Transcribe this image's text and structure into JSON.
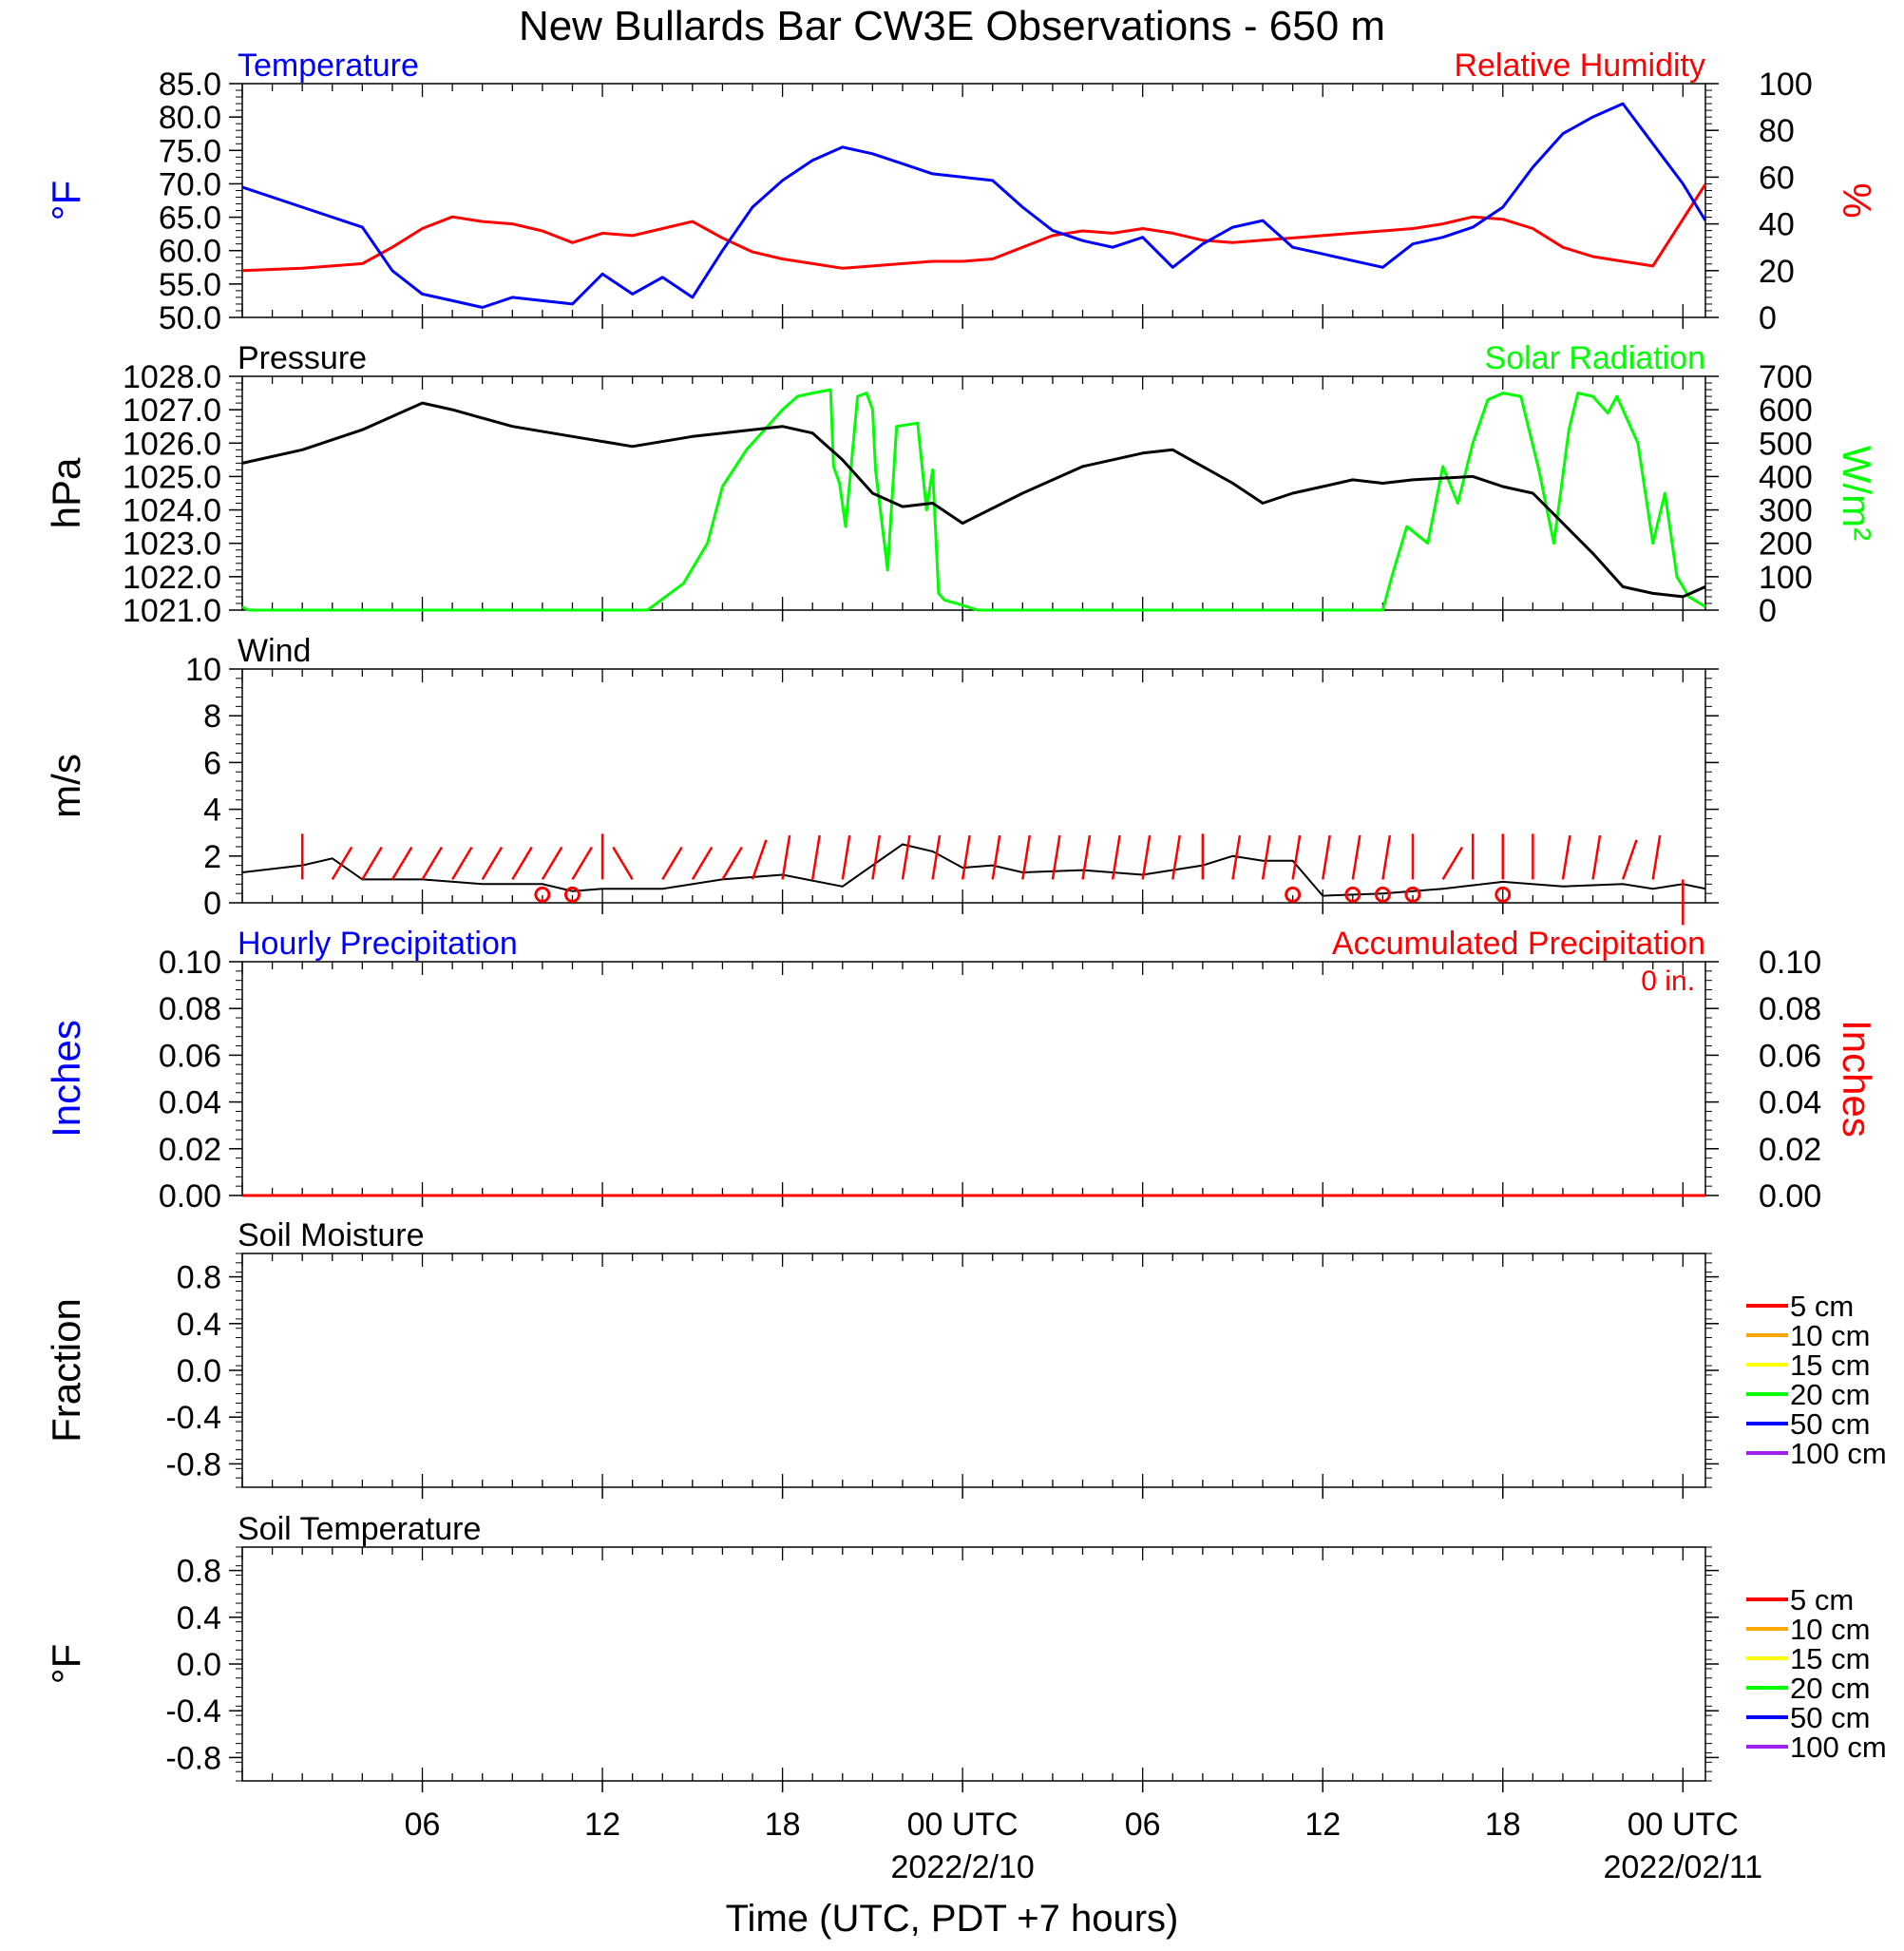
{
  "title": "New Bullards Bar CW3E Observations - 650 m",
  "x_axis": {
    "label": "Time (UTC, PDT +7 hours)",
    "range_hours": [
      -24,
      24.75
    ],
    "ticks": [
      {
        "t": -18,
        "label": "06"
      },
      {
        "t": -12,
        "label": "12"
      },
      {
        "t": -6,
        "label": "18"
      },
      {
        "t": 0,
        "label": "00 UTC",
        "date": "2022/2/10"
      },
      {
        "t": 6,
        "label": "06"
      },
      {
        "t": 12,
        "label": "12"
      },
      {
        "t": 18,
        "label": "18"
      },
      {
        "t": 24,
        "label": "00 UTC",
        "date": "2022/02/11"
      }
    ]
  },
  "chart_data": [
    {
      "type": "line",
      "panel": "temperature-humidity",
      "left_title": "Temperature",
      "right_title": "Relative Humidity",
      "ylabel_left": "°F",
      "ylabel_right": "%",
      "ylim_left": [
        50,
        85
      ],
      "ylim_right": [
        0,
        100
      ],
      "yticks_left": [
        "85.0",
        "80.0",
        "75.0",
        "70.0",
        "65.0",
        "60.0",
        "55.0",
        "50.0"
      ],
      "yticks_right": [
        "100",
        "80",
        "60",
        "40",
        "20",
        "0"
      ],
      "colors": {
        "temperature": "#0000ff",
        "humidity": "#ff0000"
      },
      "series": [
        {
          "name": "Temperature",
          "axis": "left",
          "x": [
            -24,
            -22,
            -20,
            -19,
            -18,
            -17,
            -16,
            -15,
            -14,
            -13,
            -12,
            -11,
            -10,
            -9,
            -8,
            -7,
            -6,
            -5,
            -4,
            -3,
            -2,
            -1,
            0,
            1,
            2,
            3,
            4,
            5,
            6,
            7,
            8,
            9,
            10,
            11,
            12,
            13,
            14,
            15,
            16,
            17,
            18,
            19,
            20,
            21,
            22,
            23,
            24,
            24.75
          ],
          "y": [
            69.5,
            66.5,
            63.5,
            57,
            53.5,
            52.5,
            51.5,
            53,
            52.5,
            52,
            56.5,
            53.5,
            56,
            53,
            60,
            66.5,
            70.5,
            73.5,
            75.5,
            74.5,
            73,
            71.5,
            71,
            70.5,
            66.5,
            63,
            61.5,
            60.5,
            62,
            57.5,
            61,
            63.5,
            64.5,
            60.5,
            59.5,
            58.5,
            57.5,
            61,
            62,
            63.5,
            66.5,
            72.5,
            77.5,
            80,
            82,
            76,
            70,
            64.5
          ]
        },
        {
          "name": "Relative Humidity",
          "axis": "right",
          "x": [
            -24,
            -22,
            -20,
            -19,
            -18,
            -17,
            -16,
            -15,
            -14,
            -13,
            -12,
            -11,
            -10,
            -9,
            -8,
            -7,
            -6,
            -5,
            -4,
            -3,
            -2,
            -1,
            0,
            1,
            2,
            3,
            4,
            5,
            6,
            7,
            8,
            9,
            10,
            11,
            12,
            13,
            14,
            15,
            16,
            17,
            18,
            19,
            20,
            21,
            22,
            23,
            24,
            24.75
          ],
          "y": [
            20,
            21,
            23,
            30,
            38,
            43,
            41,
            40,
            37,
            32,
            36,
            35,
            38,
            41,
            34,
            28,
            25,
            23,
            21,
            22,
            23,
            24,
            24,
            25,
            30,
            35,
            37,
            36,
            38,
            36,
            33,
            32,
            33,
            34,
            35,
            36,
            37,
            38,
            40,
            43,
            42,
            38,
            30,
            26,
            24,
            22,
            42,
            57
          ]
        }
      ]
    },
    {
      "type": "line",
      "panel": "pressure-solar",
      "left_title": "Pressure",
      "right_title": "Solar Radiation",
      "ylabel_left": "hPa",
      "ylabel_right": "W/m²",
      "ylim_left": [
        1021,
        1028
      ],
      "ylim_right": [
        0,
        700
      ],
      "yticks_left": [
        "1028.0",
        "1027.0",
        "1026.0",
        "1025.0",
        "1024.0",
        "1023.0",
        "1022.0",
        "1021.0"
      ],
      "yticks_right": [
        "700",
        "600",
        "500",
        "400",
        "300",
        "200",
        "100",
        "0"
      ],
      "colors": {
        "pressure": "#000000",
        "solar": "#00ff00"
      },
      "series": [
        {
          "name": "Pressure",
          "axis": "left",
          "x": [
            -24,
            -22,
            -20,
            -18,
            -17,
            -15,
            -13,
            -11,
            -9,
            -7,
            -6,
            -5,
            -4,
            -3,
            -2,
            -1,
            0,
            2,
            4,
            6,
            7,
            8,
            9,
            10,
            11,
            12,
            13,
            14,
            15,
            17,
            18,
            19,
            20,
            21,
            22,
            23,
            24,
            24.75
          ],
          "y": [
            1025.4,
            1025.8,
            1026.4,
            1027.2,
            1027.0,
            1026.5,
            1026.2,
            1025.9,
            1026.2,
            1026.4,
            1026.5,
            1026.3,
            1025.5,
            1024.5,
            1024.1,
            1024.2,
            1023.6,
            1024.5,
            1025.3,
            1025.7,
            1025.8,
            1025.3,
            1024.8,
            1024.2,
            1024.5,
            1024.7,
            1024.9,
            1024.8,
            1024.9,
            1025.0,
            1024.7,
            1024.5,
            1023.6,
            1022.7,
            1021.7,
            1021.5,
            1021.4,
            1021.7
          ]
        },
        {
          "name": "Solar Radiation",
          "axis": "right",
          "x": [
            -24,
            -23.8,
            -10.5,
            -9.3,
            -8.5,
            -8,
            -7.2,
            -6.5,
            -6,
            -5.5,
            -5,
            -4.4,
            -4.3,
            -4.1,
            -3.9,
            -3.5,
            -3.2,
            -3,
            -2.9,
            -2.5,
            -2.2,
            -1.5,
            -1.2,
            -1.0,
            -0.8,
            -0.6,
            -0.2,
            0.5,
            1.3,
            14,
            14.3,
            14.8,
            15.5,
            16.0,
            16.5,
            17.0,
            17.5,
            18,
            18.6,
            19.2,
            19.7,
            20.2,
            20.5,
            21,
            21.5,
            21.8,
            22.5,
            23,
            23.4,
            23.8,
            24.2,
            24.75
          ],
          "y": [
            10,
            0,
            0,
            80,
            200,
            370,
            480,
            550,
            600,
            640,
            650,
            660,
            430,
            380,
            250,
            640,
            650,
            600,
            420,
            120,
            550,
            560,
            300,
            420,
            50,
            30,
            20,
            0,
            0,
            0,
            100,
            250,
            200,
            430,
            320,
            500,
            630,
            650,
            640,
            420,
            200,
            540,
            650,
            640,
            590,
            640,
            500,
            200,
            350,
            100,
            40,
            10
          ]
        }
      ]
    },
    {
      "type": "line",
      "panel": "wind",
      "title": "Wind",
      "ylabel": "m/s",
      "ylim": [
        0,
        10
      ],
      "yticks": [
        "10",
        "8",
        "6",
        "4",
        "2",
        "0"
      ],
      "colors": {
        "speed": "#000000",
        "barbs": "#ff0000"
      },
      "series": [
        {
          "name": "Wind Speed",
          "x": [
            -24,
            -22,
            -21,
            -20,
            -18,
            -16,
            -14,
            -13,
            -12,
            -10,
            -8,
            -6,
            -4,
            -3,
            -2,
            -1,
            0,
            1,
            2,
            4,
            6,
            8,
            9,
            10,
            11,
            12,
            14,
            16,
            18,
            20,
            22,
            23,
            24,
            24.75
          ],
          "y": [
            1.3,
            1.6,
            1.9,
            1.0,
            1.0,
            0.8,
            0.8,
            0.5,
            0.6,
            0.6,
            1.0,
            1.2,
            0.7,
            1.6,
            2.5,
            2.2,
            1.5,
            1.6,
            1.3,
            1.4,
            1.2,
            1.6,
            2.0,
            1.8,
            1.8,
            0.3,
            0.4,
            0.6,
            0.9,
            0.7,
            0.8,
            0.6,
            0.8,
            0.6
          ]
        }
      ],
      "barbs_dir_deg": [
        0,
        315,
        315,
        315,
        315,
        315,
        315,
        315,
        315,
        315,
        0,
        45,
        315,
        315,
        315,
        330,
        345,
        345,
        345,
        345,
        345,
        345,
        345,
        345,
        345,
        345,
        345,
        345,
        345,
        345,
        0,
        345,
        345,
        345,
        345,
        345,
        345,
        0,
        315,
        0,
        0,
        0,
        345,
        345,
        330,
        345,
        180,
        180
      ],
      "calm_circles_t": [
        -14,
        -13,
        11,
        13,
        14,
        15,
        18
      ]
    },
    {
      "type": "line",
      "panel": "precipitation",
      "left_title": "Hourly Precipitation",
      "right_title": "Accumulated Precipitation",
      "accumulated_total": "0 in.",
      "ylabel_left": "Inches",
      "ylabel_right": "Inches",
      "ylim": [
        0,
        0.1
      ],
      "yticks": [
        "0.10",
        "0.08",
        "0.06",
        "0.04",
        "0.02",
        "0.00"
      ],
      "colors": {
        "hourly": "#0000ff",
        "accumulated": "#ff0000"
      },
      "series": [
        {
          "name": "Hourly Precipitation",
          "x": [
            -24,
            24.75
          ],
          "y": [
            0,
            0
          ]
        },
        {
          "name": "Accumulated Precipitation",
          "x": [
            -24,
            24.75
          ],
          "y": [
            0,
            0
          ]
        }
      ]
    },
    {
      "type": "line",
      "panel": "soil-moisture",
      "title": "Soil Moisture",
      "ylabel": "Fraction",
      "ylim": [
        -1,
        1
      ],
      "yticks": [
        "0.8",
        "0.4",
        "0.0",
        "-0.4",
        "-0.8"
      ],
      "legend": [
        {
          "label": "5 cm",
          "color": "#ff0000"
        },
        {
          "label": "10 cm",
          "color": "#ffa500"
        },
        {
          "label": "15 cm",
          "color": "#ffff00"
        },
        {
          "label": "20 cm",
          "color": "#00ff00"
        },
        {
          "label": "50 cm",
          "color": "#0000ff"
        },
        {
          "label": "100 cm",
          "color": "#a020f0"
        }
      ],
      "series": []
    },
    {
      "type": "line",
      "panel": "soil-temperature",
      "title": "Soil Temperature",
      "ylabel": "°F",
      "ylim": [
        -1,
        1
      ],
      "yticks": [
        "0.8",
        "0.4",
        "0.0",
        "-0.4",
        "-0.8"
      ],
      "legend": [
        {
          "label": "5 cm",
          "color": "#ff0000"
        },
        {
          "label": "10 cm",
          "color": "#ffa500"
        },
        {
          "label": "15 cm",
          "color": "#ffff00"
        },
        {
          "label": "20 cm",
          "color": "#00ff00"
        },
        {
          "label": "50 cm",
          "color": "#0000ff"
        },
        {
          "label": "100 cm",
          "color": "#a020f0"
        }
      ],
      "series": []
    }
  ]
}
